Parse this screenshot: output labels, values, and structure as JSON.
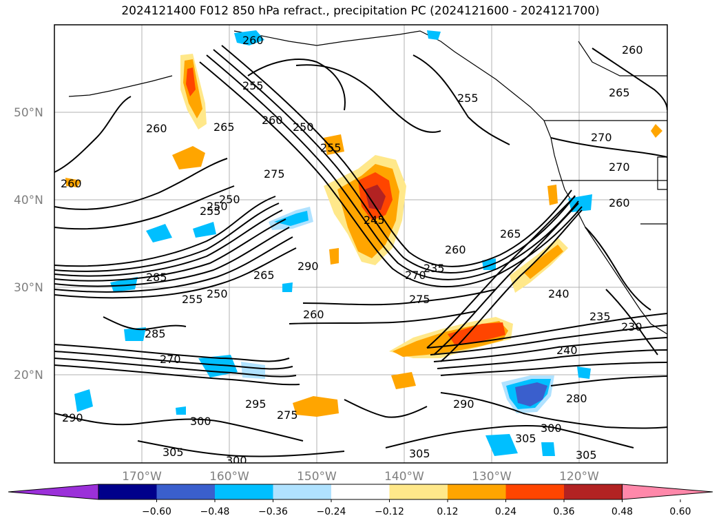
{
  "title": "2024121400 F012 850 hPa refract., precipitation PC (2024121600 - 2024121700)",
  "lat_labels": [
    "50°N",
    "40°N",
    "30°N",
    "20°N"
  ],
  "lon_labels": [
    "170°W",
    "160°W",
    "150°W",
    "140°W",
    "130°W",
    "120°W"
  ],
  "colorbar": {
    "colors": [
      "#9b30d9",
      "#00008b",
      "#3a5fcd",
      "#00bfff",
      "#b0e2ff",
      "#ffffff",
      "#ffe88a",
      "#ffa500",
      "#ff4500",
      "#b22222",
      "#ff88aa"
    ],
    "ticks": [
      "−0.60",
      "−0.48",
      "−0.36",
      "−0.24",
      "−0.12",
      "0.12",
      "0.24",
      "0.36",
      "0.48",
      "0.60"
    ]
  },
  "contour_labels": [
    {
      "text": "260"
    },
    {
      "text": "255"
    },
    {
      "text": "260"
    },
    {
      "text": "265"
    },
    {
      "text": "260"
    },
    {
      "text": "250"
    },
    {
      "text": "255"
    },
    {
      "text": "275"
    },
    {
      "text": "260"
    },
    {
      "text": "245"
    },
    {
      "text": "260"
    },
    {
      "text": "265"
    },
    {
      "text": "270"
    },
    {
      "text": "250"
    },
    {
      "text": "290"
    },
    {
      "text": "270"
    },
    {
      "text": "235"
    },
    {
      "text": "275"
    },
    {
      "text": "240"
    },
    {
      "text": "235"
    },
    {
      "text": "230"
    },
    {
      "text": "260"
    },
    {
      "text": "250"
    },
    {
      "text": "255"
    },
    {
      "text": "265"
    },
    {
      "text": "285"
    },
    {
      "text": "240"
    },
    {
      "text": "290"
    },
    {
      "text": "280"
    },
    {
      "text": "300"
    },
    {
      "text": "305"
    },
    {
      "text": "300"
    },
    {
      "text": "305"
    },
    {
      "text": "300"
    },
    {
      "text": "305"
    },
    {
      "text": "305"
    },
    {
      "text": "275"
    },
    {
      "text": "295"
    },
    {
      "text": "270"
    },
    {
      "text": "260"
    },
    {
      "text": "270"
    },
    {
      "text": "265"
    },
    {
      "text": "260"
    },
    {
      "text": "255"
    },
    {
      "text": "250"
    },
    {
      "text": "285"
    },
    {
      "text": "255"
    },
    {
      "text": "290"
    }
  ]
}
